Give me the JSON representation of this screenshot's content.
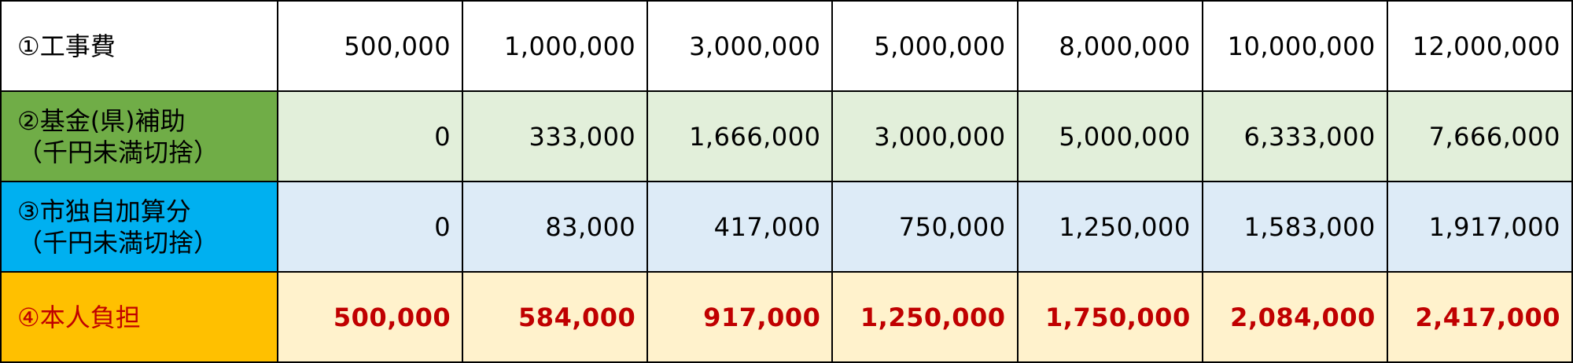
{
  "table": {
    "rows": [
      {
        "label": [
          "①工事費"
        ],
        "cells": [
          "500,000",
          "1,000,000",
          "3,000,000",
          "5,000,000",
          "8,000,000",
          "10,000,000",
          "12,000,000"
        ]
      },
      {
        "label": [
          "②基金(県)補助",
          "（千円未満切捨）"
        ],
        "cells": [
          "0",
          "333,000",
          "1,666,000",
          "3,000,000",
          "5,000,000",
          "6,333,000",
          "7,666,000"
        ]
      },
      {
        "label": [
          "③市独自加算分",
          "（千円未満切捨）"
        ],
        "cells": [
          "0",
          "83,000",
          "417,000",
          "750,000",
          "1,250,000",
          "1,583,000",
          "1,917,000"
        ]
      },
      {
        "label": [
          "④本人負担"
        ],
        "cells": [
          "500,000",
          "584,000",
          "917,000",
          "1,250,000",
          "1,750,000",
          "2,084,000",
          "2,417,000"
        ]
      }
    ]
  }
}
